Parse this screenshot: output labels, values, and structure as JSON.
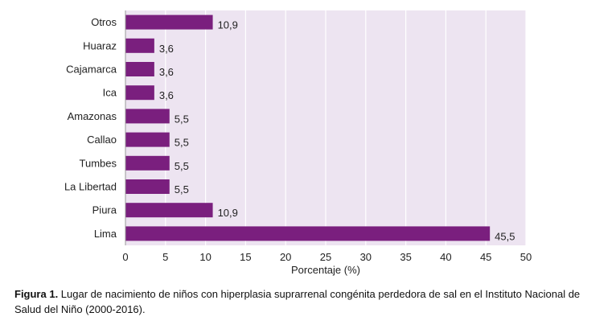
{
  "chart_data": {
    "type": "bar",
    "orientation": "horizontal",
    "categories": [
      "Otros",
      "Huaraz",
      "Cajamarca",
      "Ica",
      "Amazonas",
      "Callao",
      "Tumbes",
      "La Libertad",
      "Piura",
      "Lima"
    ],
    "values": [
      10.9,
      3.6,
      3.6,
      3.6,
      5.5,
      5.5,
      5.5,
      5.5,
      10.9,
      45.5
    ],
    "data_labels": [
      "10,9",
      "3,6",
      "3,6",
      "3,6",
      "5,5",
      "5,5",
      "5,5",
      "5,5",
      "10,9",
      "45,5"
    ],
    "xlabel": "Porcentaje (%)",
    "ylabel": "",
    "xlim": [
      0,
      50
    ],
    "xticks": [
      0,
      5,
      10,
      15,
      20,
      25,
      30,
      35,
      40,
      45,
      50
    ],
    "grid": "vertical",
    "legend": "none",
    "bar_color": "#7a1f7e",
    "plot_background": "#ede4f1",
    "grid_color": "#ffffff"
  },
  "caption": {
    "label": "Figura 1.",
    "text": " Lugar de nacimiento de niños con hiperplasia suprarrenal congénita perdedora de sal en el Instituto Nacional de Salud del Niño (2000-2016)."
  }
}
